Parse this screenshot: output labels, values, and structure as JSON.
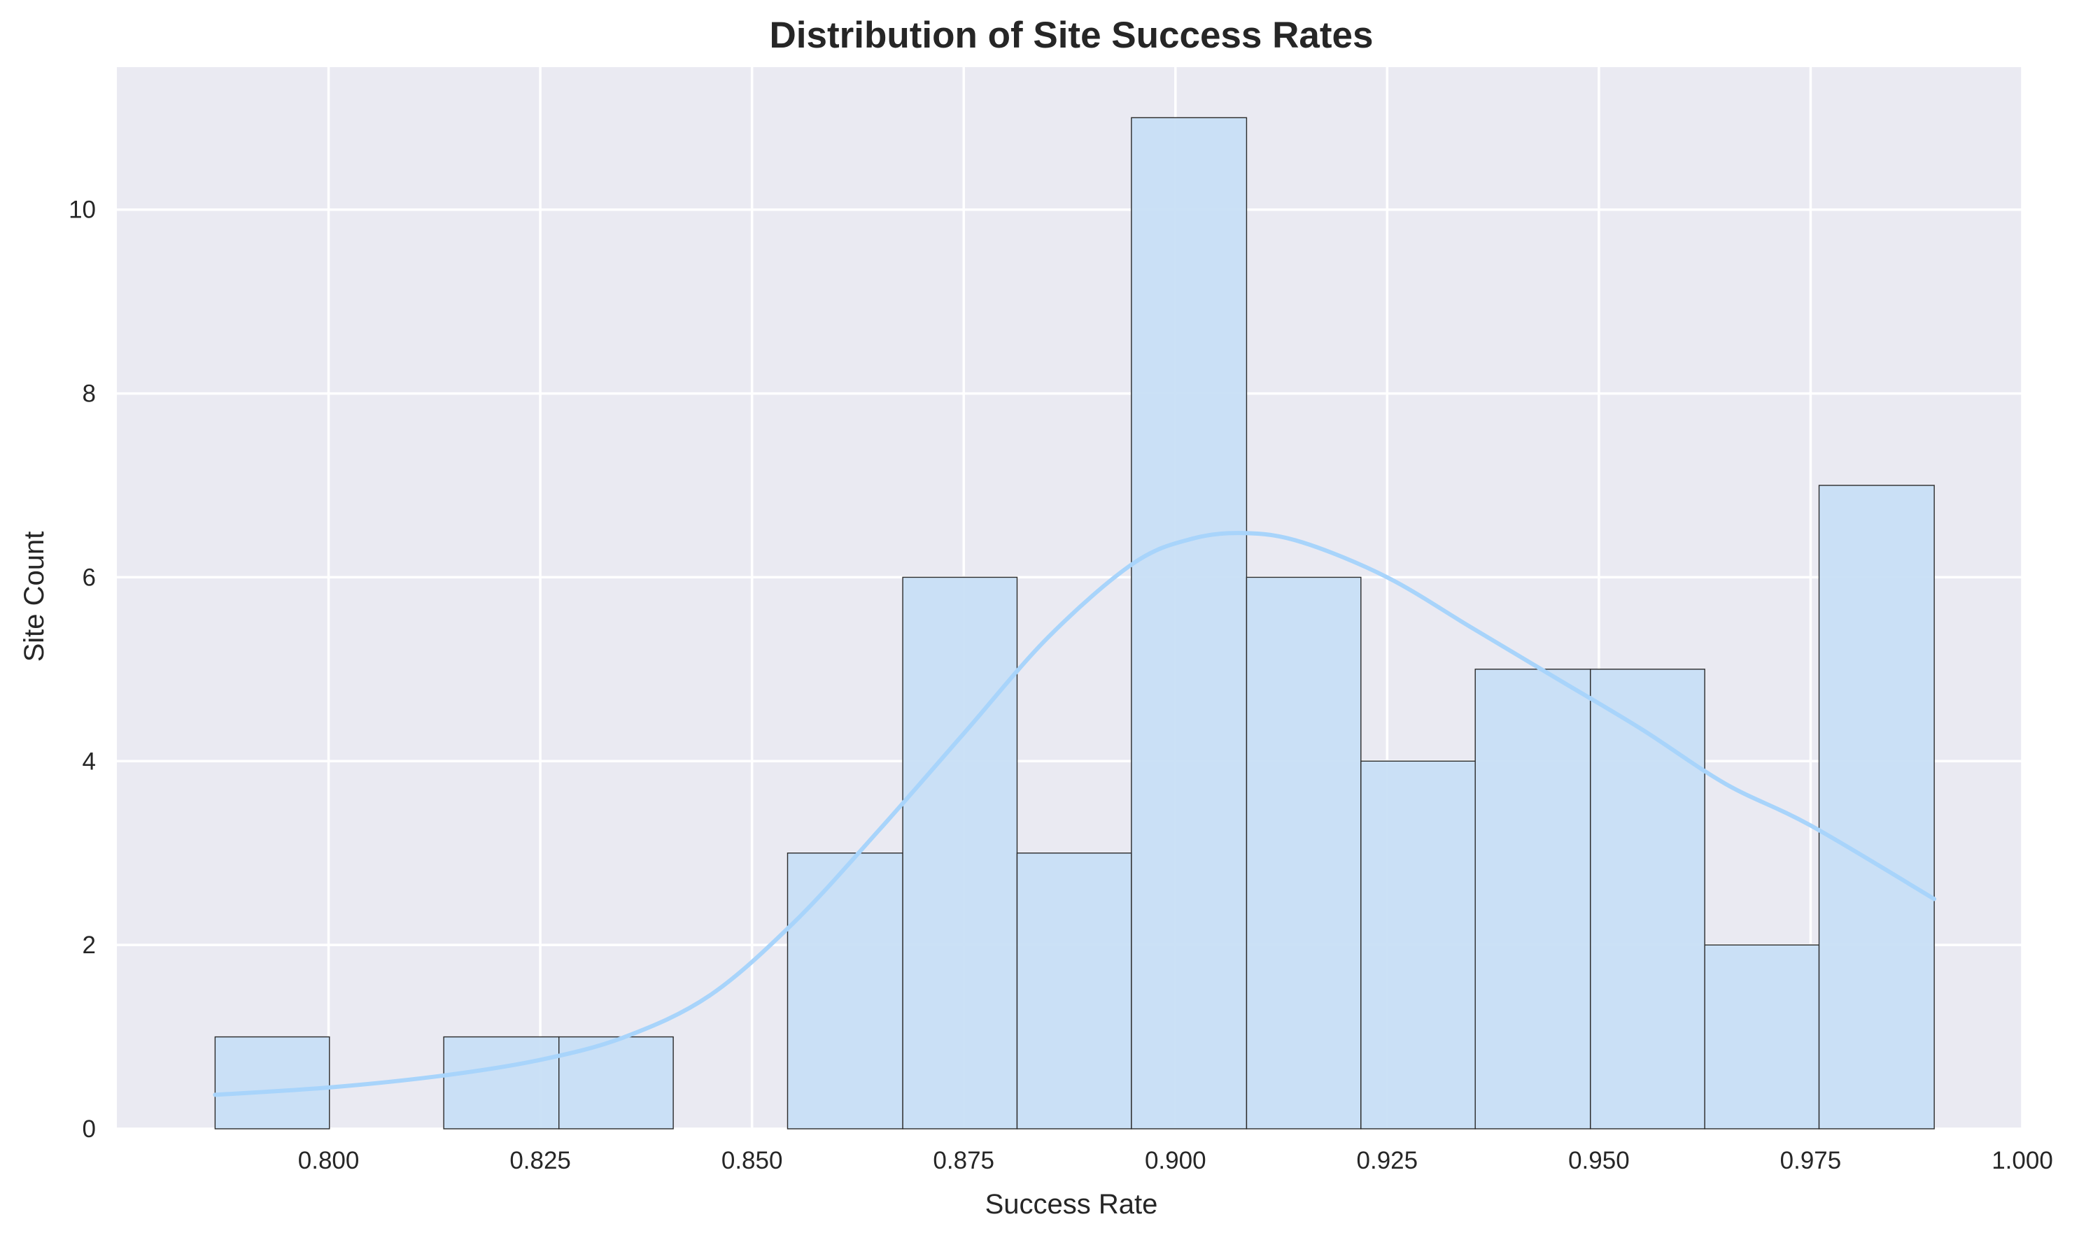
{
  "colors": {
    "plot_bg": "#eaeaf2",
    "grid": "#ffffff",
    "bar_fill": "#c8dff5",
    "bar_edge": "#2b2b2b",
    "kde_line": "#a8d4fb"
  },
  "chart_data": {
    "type": "bar",
    "subtype": "histogram",
    "title": "Distribution of Site Success Rates",
    "xlabel": "Success Rate",
    "ylabel": "Site Count",
    "xlim": [
      0.775,
      1.0
    ],
    "ylim": [
      0,
      11.55
    ],
    "grid": true,
    "legend": "none",
    "x_ticks": [
      0.8,
      0.825,
      0.85,
      0.875,
      0.9,
      0.925,
      0.95,
      0.975,
      1.0
    ],
    "x_tick_labels": [
      "0.800",
      "0.825",
      "0.850",
      "0.875",
      "0.900",
      "0.925",
      "0.950",
      "0.975",
      "1.000"
    ],
    "y_ticks": [
      0,
      2,
      4,
      6,
      8,
      10
    ],
    "y_tick_labels": [
      "0",
      "2",
      "4",
      "6",
      "8",
      "10"
    ],
    "bin_edges": [
      0.7866,
      0.8001,
      0.8136,
      0.8272,
      0.8407,
      0.8542,
      0.8678,
      0.8813,
      0.8948,
      0.9084,
      0.9219,
      0.9354,
      0.949,
      0.9625,
      0.976,
      0.9896
    ],
    "counts": [
      1,
      0,
      1,
      1,
      0,
      3,
      6,
      3,
      11,
      6,
      4,
      5,
      5,
      2,
      7
    ],
    "kde": {
      "x": [
        0.7866,
        0.8001,
        0.8136,
        0.825,
        0.835,
        0.845,
        0.855,
        0.865,
        0.875,
        0.885,
        0.895,
        0.902,
        0.9084,
        0.915,
        0.925,
        0.935,
        0.945,
        0.955,
        0.965,
        0.975,
        0.9896
      ],
      "y": [
        0.37,
        0.45,
        0.58,
        0.75,
        1.0,
        1.45,
        2.25,
        3.25,
        4.3,
        5.35,
        6.15,
        6.42,
        6.48,
        6.38,
        6.0,
        5.45,
        4.9,
        4.35,
        3.75,
        3.3,
        2.5
      ]
    }
  }
}
